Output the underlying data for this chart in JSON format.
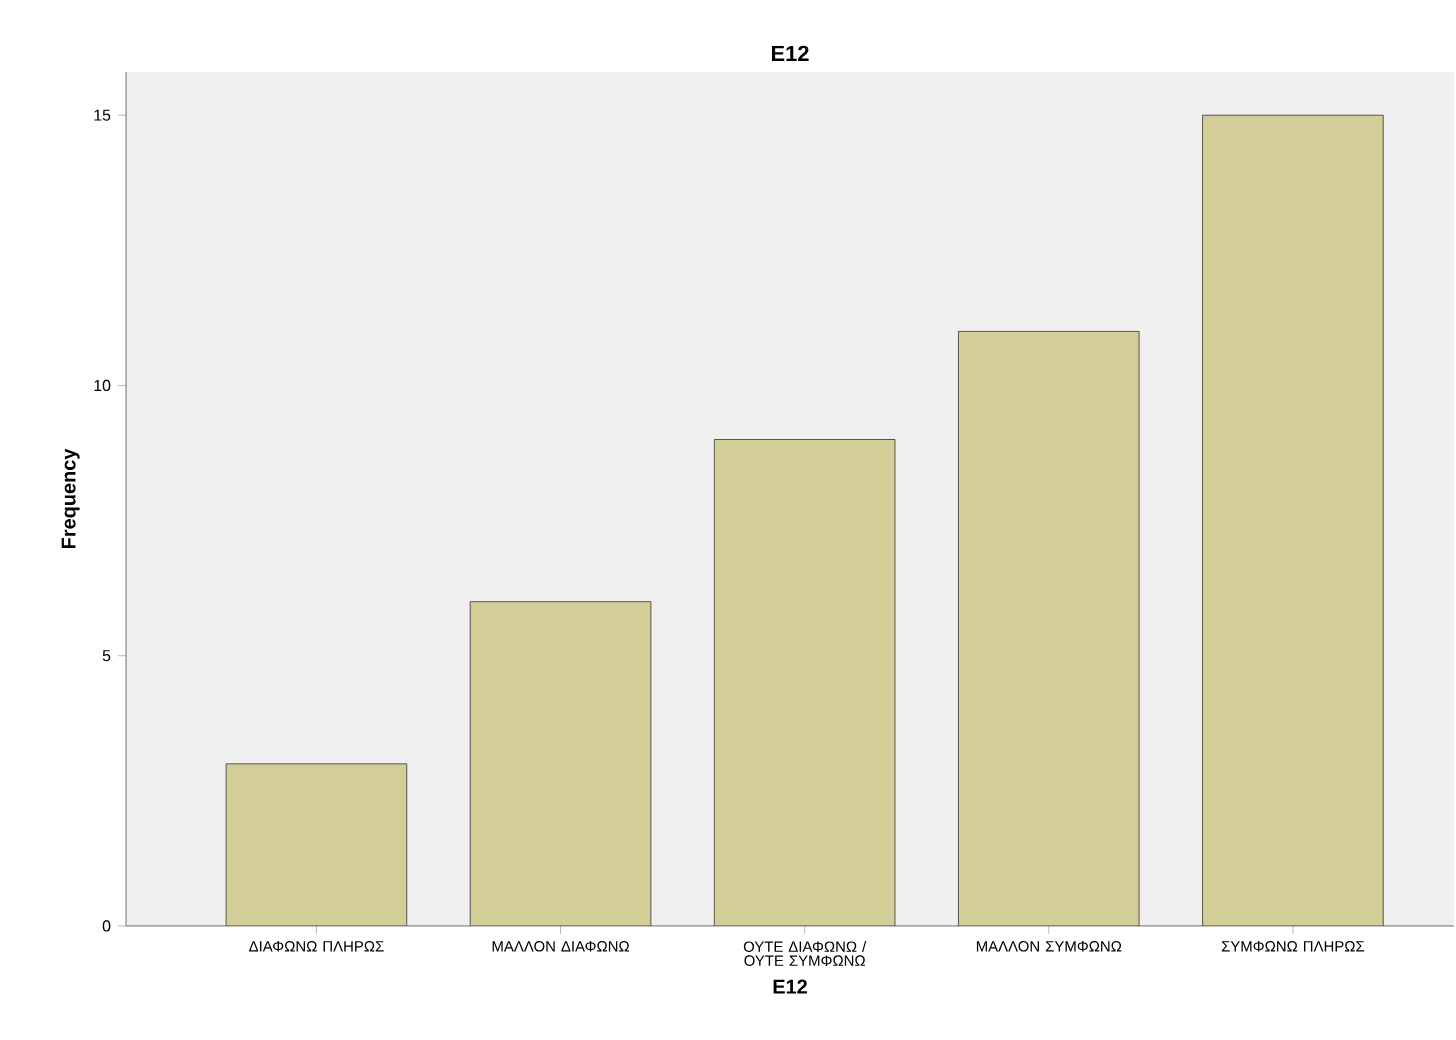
{
  "chart_data": {
    "type": "bar",
    "title": "E12",
    "xlabel": "E12",
    "ylabel": "Frequency",
    "categories": [
      "ΔΙΑΦΩΝΩ ΠΛΗΡΩΣ",
      "ΜΑΛΛΟΝ ΔΙΑΦΩΝΩ",
      "ΟΥΤΕ ΔΙΑΦΩΝΩ / ΟΥΤΕ ΣΥΜΦΩΝΩ",
      "ΜΑΛΛΟΝ ΣΥΜΦΩΝΩ",
      "ΣΥΜΦΩΝΩ ΠΛΗΡΩΣ"
    ],
    "values": [
      3,
      6,
      9,
      11,
      15
    ],
    "color": "#d3ce97",
    "ylim": [
      0,
      15.8
    ],
    "yticks": [
      0,
      5,
      10,
      15
    ],
    "grid": false
  }
}
